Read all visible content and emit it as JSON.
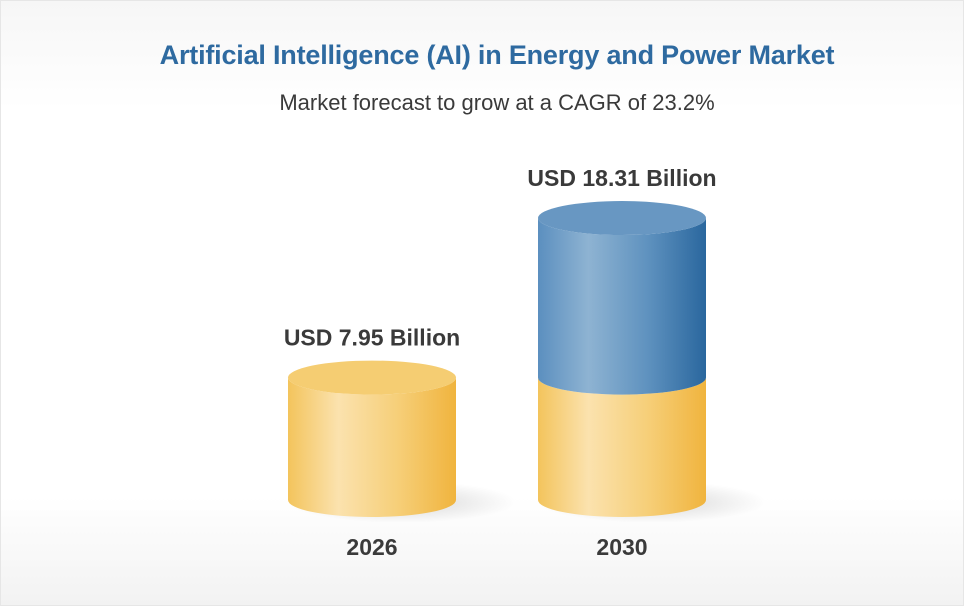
{
  "page": {
    "title": "Artificial Intelligence (AI) in Energy and Power Market",
    "subtitle": "Market forecast to grow at a CAGR of 23.2%"
  },
  "colors": {
    "title": "#2e6aa0",
    "gold": "#f2bd4d",
    "gold_light": "#fbe2ae",
    "blue": "#2d6ca3",
    "blue_light": "#8eb3d2"
  },
  "chart_data": {
    "type": "bar",
    "style": "3d-cylinder",
    "categories": [
      "2026",
      "2030"
    ],
    "values": [
      7.95,
      18.31
    ],
    "value_labels": [
      "USD 7.95 Billion",
      "USD 18.31 Billion"
    ],
    "title": "Artificial Intelligence (AI) in Energy and Power Market",
    "subtitle": "Market forecast to grow at a CAGR of 23.2%",
    "grid": false,
    "legend": "none",
    "growth_segment_series": "2030 bar: gold base equal to 2026 value, blue top segment for growth"
  }
}
